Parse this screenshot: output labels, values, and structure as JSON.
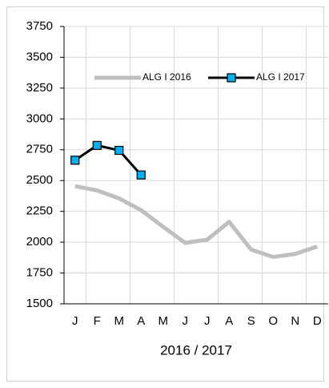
{
  "chart_data": {
    "type": "line",
    "x_label": "2016 / 2017",
    "categories": [
      "J",
      "F",
      "M",
      "A",
      "M",
      "J",
      "J",
      "A",
      "S",
      "O",
      "N",
      "D"
    ],
    "series": [
      {
        "name": "ALG I 2016",
        "color": "#bfbfbf",
        "values": [
          2455,
          2420,
          2355,
          2260,
          2125,
          1995,
          2020,
          2165,
          1940,
          1880,
          1905,
          1965
        ]
      },
      {
        "name": "ALG I 2017",
        "color": "#000000",
        "marker_color": "#00b0f0",
        "values": [
          2665,
          2785,
          2745,
          2545,
          null,
          null,
          null,
          null,
          null,
          null,
          null,
          null
        ]
      }
    ],
    "ylim": [
      1500,
      3750
    ],
    "yticks": [
      1500,
      1750,
      2000,
      2250,
      2500,
      2750,
      3000,
      3250,
      3500,
      3750
    ],
    "grid": true,
    "legend": "top-right"
  }
}
